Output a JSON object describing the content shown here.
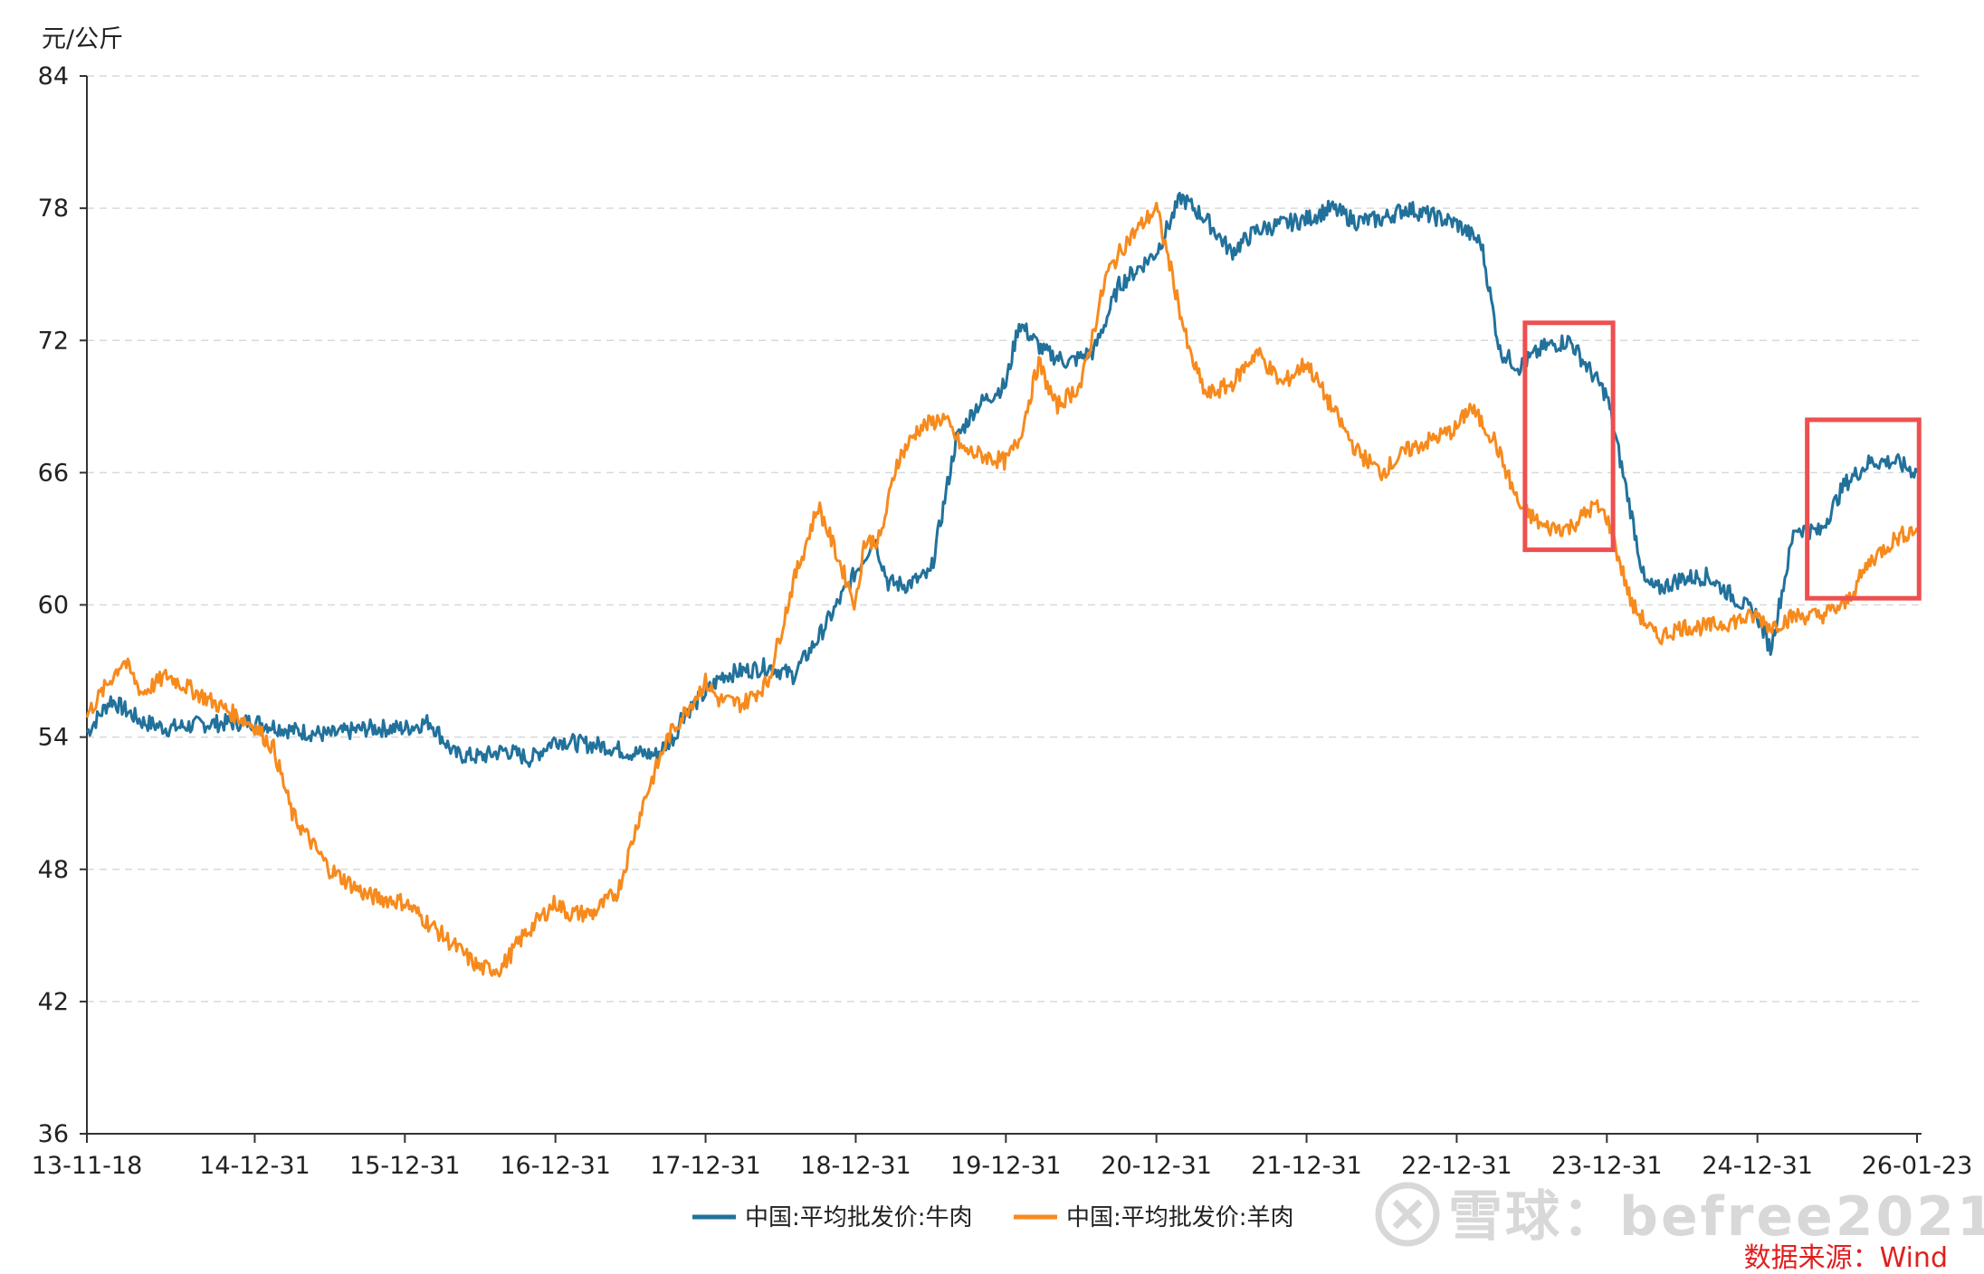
{
  "chart_data": {
    "type": "line",
    "unit_label": "元/公斤",
    "y_ticks": [
      36,
      42,
      48,
      54,
      60,
      66,
      72,
      78,
      84
    ],
    "ylim": [
      36,
      84
    ],
    "grid": "horizontal-dashed",
    "x_tick_labels": [
      "13-11-18",
      "14-12-31",
      "15-12-31",
      "16-12-31",
      "17-12-31",
      "18-12-31",
      "19-12-31",
      "20-12-31",
      "21-12-31",
      "22-12-31",
      "23-12-31",
      "24-12-31",
      "26-01-23"
    ],
    "x_ticks": [
      "2013-11-18",
      "2014-12-31",
      "2015-12-31",
      "2016-12-31",
      "2017-12-31",
      "2018-12-31",
      "2019-12-31",
      "2020-12-31",
      "2021-12-31",
      "2022-12-31",
      "2023-12-31",
      "2024-12-31",
      "2026-01-23"
    ],
    "legend_position": "bottom-center",
    "series": [
      {
        "name": "中国:平均批发价:牛肉",
        "color": "#21719b",
        "x": [
          "2013-11-18",
          "2014-01-15",
          "2014-04-01",
          "2014-06-01",
          "2014-09-01",
          "2014-12-31",
          "2015-04-01",
          "2015-07-01",
          "2015-10-01",
          "2015-12-31",
          "2016-03-01",
          "2016-05-01",
          "2016-07-01",
          "2016-09-01",
          "2016-11-01",
          "2016-12-31",
          "2017-03-01",
          "2017-05-01",
          "2017-07-01",
          "2017-09-01",
          "2017-10-20",
          "2017-11-01",
          "2017-12-31",
          "2018-02-10",
          "2018-04-01",
          "2018-06-01",
          "2018-08-01",
          "2018-10-01",
          "2018-12-31",
          "2019-02-15",
          "2019-03-20",
          "2019-05-01",
          "2019-07-01",
          "2019-09-01",
          "2019-10-20",
          "2019-12-31",
          "2020-02-01",
          "2020-04-01",
          "2020-06-01",
          "2020-08-01",
          "2020-10-01",
          "2020-12-31",
          "2021-03-01",
          "2021-05-01",
          "2021-07-01",
          "2021-09-01",
          "2021-10-15",
          "2021-12-31",
          "2022-03-01",
          "2022-05-01",
          "2022-07-01",
          "2022-09-01",
          "2022-12-31",
          "2023-03-01",
          "2023-04-15",
          "2023-06-01",
          "2023-08-01",
          "2023-10-01",
          "2023-12-31",
          "2024-03-01",
          "2024-04-01",
          "2024-05-01",
          "2024-07-01",
          "2024-09-01",
          "2024-12-31",
          "2025-02-01",
          "2025-04-01",
          "2025-06-01",
          "2025-08-01",
          "2025-10-01",
          "2025-12-01",
          "2026-01-23"
        ],
        "values": [
          54.2,
          55.7,
          54.7,
          54.4,
          54.6,
          54.7,
          54.3,
          54.1,
          54.4,
          54.4,
          54.7,
          53.2,
          53.1,
          53.4,
          53.0,
          53.9,
          53.7,
          53.6,
          53.3,
          53.2,
          54.1,
          54.9,
          56.0,
          56.8,
          57.0,
          57.2,
          56.8,
          58.5,
          61.5,
          63.0,
          61.0,
          60.9,
          61.4,
          67.5,
          69.0,
          70.0,
          72.8,
          71.5,
          71.0,
          71.5,
          74.5,
          76.0,
          78.5,
          77.5,
          76.0,
          77.0,
          77.2,
          77.5,
          78.0,
          77.4,
          77.5,
          78.0,
          77.3,
          76.4,
          71.5,
          70.8,
          71.7,
          72.0,
          69.5,
          64.0,
          61.0,
          60.7,
          61.2,
          61.3,
          59.5,
          58.0,
          63.5,
          63.3,
          65.5,
          66.5,
          66.5,
          66.0
        ]
      },
      {
        "name": "中国:平均批发价:羊肉",
        "color": "#f78a1d",
        "x": [
          "2013-11-18",
          "2014-02-15",
          "2014-04-01",
          "2014-06-01",
          "2014-09-01",
          "2014-12-31",
          "2015-02-15",
          "2015-04-01",
          "2015-07-01",
          "2015-10-01",
          "2015-12-31",
          "2016-03-01",
          "2016-05-01",
          "2016-07-01",
          "2016-08-20",
          "2016-10-15",
          "2016-12-31",
          "2017-02-01",
          "2017-04-01",
          "2017-06-01",
          "2017-08-01",
          "2017-10-01",
          "2017-12-31",
          "2018-02-01",
          "2018-04-01",
          "2018-06-01",
          "2018-08-01",
          "2018-10-01",
          "2018-12-31",
          "2019-01-20",
          "2019-03-01",
          "2019-04-10",
          "2019-06-01",
          "2019-08-01",
          "2019-09-20",
          "2019-12-31",
          "2020-02-01",
          "2020-03-20",
          "2020-05-01",
          "2020-07-01",
          "2020-09-01",
          "2020-10-20",
          "2020-12-31",
          "2021-02-01",
          "2021-03-20",
          "2021-05-01",
          "2021-07-01",
          "2021-09-01",
          "2021-11-01",
          "2021-12-31",
          "2022-03-01",
          "2022-05-01",
          "2022-07-01",
          "2022-09-01",
          "2022-12-31",
          "2023-02-01",
          "2023-04-01",
          "2023-06-01",
          "2023-08-01",
          "2023-10-01",
          "2023-12-01",
          "2023-12-31",
          "2024-03-01",
          "2024-05-01",
          "2024-07-01",
          "2024-09-01",
          "2024-12-31",
          "2025-02-01",
          "2025-04-01",
          "2025-06-01",
          "2025-08-01",
          "2025-10-01",
          "2025-12-01",
          "2026-01-23"
        ],
        "values": [
          55.0,
          57.5,
          56.0,
          56.8,
          55.8,
          54.5,
          53.5,
          50.5,
          48.0,
          46.8,
          46.5,
          45.5,
          44.5,
          43.5,
          43.5,
          45.0,
          46.5,
          46.0,
          46.0,
          47.0,
          51.0,
          54.0,
          56.5,
          55.7,
          55.5,
          56.5,
          61.0,
          64.5,
          60.0,
          62.8,
          63.0,
          66.5,
          68.0,
          68.5,
          67.0,
          66.5,
          67.5,
          71.0,
          69.0,
          70.0,
          75.0,
          76.5,
          78.0,
          75.5,
          71.5,
          69.5,
          70.0,
          71.5,
          70.0,
          71.0,
          69.0,
          67.0,
          66.0,
          67.0,
          68.0,
          69.0,
          67.5,
          64.5,
          63.5,
          63.5,
          64.5,
          64.0,
          60.0,
          58.5,
          59.0,
          59.0,
          59.5,
          59.0,
          59.5,
          59.5,
          60.0,
          62.0,
          63.0,
          63.5
        ]
      }
    ],
    "annotations": [
      {
        "type": "rect",
        "color": "#ee4f4f",
        "x0": "2023-06-15",
        "x1": "2024-01-15",
        "y0": 62.5,
        "y1": 72.8
      },
      {
        "type": "rect",
        "color": "#ee4f4f",
        "x0": "2025-05-01",
        "x1": "2026-01-28",
        "y0": 60.3,
        "y1": 68.4
      }
    ],
    "source": "数据来源：Wind",
    "watermark": "雪球：befree2021"
  }
}
